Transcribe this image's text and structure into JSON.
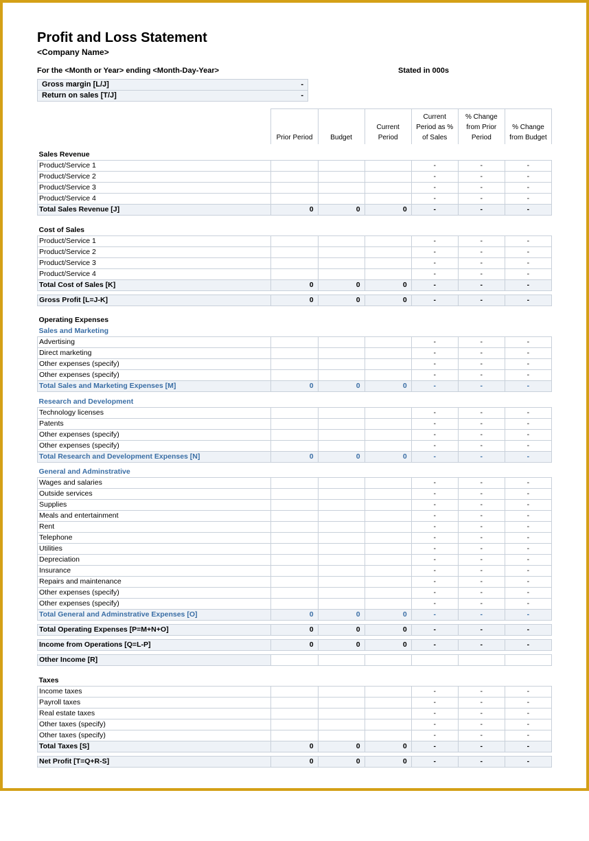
{
  "title": "Profit and Loss Statement",
  "subtitle": "<Company Name>",
  "period_label": "For the <Month or Year> ending <Month-Day-Year>",
  "stated_label": "Stated in 000s",
  "metrics": {
    "gross_margin_label": "Gross margin  [L/J]",
    "gross_margin_value": "-",
    "return_on_sales_label": "Return on sales  [T/J]",
    "return_on_sales_value": "-"
  },
  "headers": {
    "prior": "Prior Period",
    "budget": "Budget",
    "current": "Current Period",
    "pct_sales": "Current Period as % of Sales",
    "chg_prior": "% Change from Prior Period",
    "chg_budget": "% Change from Budget"
  },
  "sections": {
    "sales_revenue": "Sales Revenue",
    "cost_of_sales": "Cost of Sales",
    "gross_profit": "Gross Profit  [L=J-K]",
    "operating_expenses": "Operating Expenses",
    "sales_marketing": "Sales and Marketing",
    "r_and_d": "Research and Development",
    "g_and_a": "General and Adminstrative",
    "total_sales_rev": "Total Sales Revenue  [J]",
    "total_cos": "Total Cost of Sales  [K]",
    "total_sm": "Total Sales and Marketing Expenses  [M]",
    "total_rd": "Total Research and Development Expenses  [N]",
    "total_ga": "Total General and Adminstrative Expenses  [O]",
    "total_opex": "Total Operating Expenses  [P=M+N+O]",
    "income_ops": "Income from Operations  [Q=L-P]",
    "other_income": "Other Income  [R]",
    "taxes": "Taxes",
    "total_taxes": "Total Taxes  [S]",
    "net_profit": "Net Profit  [T=Q+R-S]"
  },
  "rows": {
    "ps1": "Product/Service 1",
    "ps2": "Product/Service 2",
    "ps3": "Product/Service 3",
    "ps4": "Product/Service 4",
    "advertising": "Advertising",
    "direct_marketing": "Direct marketing",
    "other_specify": "Other expenses (specify)",
    "tech_licenses": "Technology licenses",
    "patents": "Patents",
    "wages": "Wages and salaries",
    "outside": "Outside services",
    "supplies": "Supplies",
    "meals": "Meals and entertainment",
    "rent": "Rent",
    "telephone": "Telephone",
    "utilities": "Utilities",
    "depreciation": "Depreciation",
    "insurance": "Insurance",
    "repairs": "Repairs and maintenance",
    "income_taxes": "Income taxes",
    "payroll_taxes": "Payroll taxes",
    "real_estate_taxes": "Real estate taxes",
    "other_taxes": "Other taxes (specify)"
  },
  "vals": {
    "zero": "0",
    "dash": "-"
  },
  "colors": {
    "border_outer": "#d4a017",
    "cell_border": "#c8d0da",
    "fill_bg": "#eef2f7",
    "blue_text": "#3a6ea5"
  }
}
